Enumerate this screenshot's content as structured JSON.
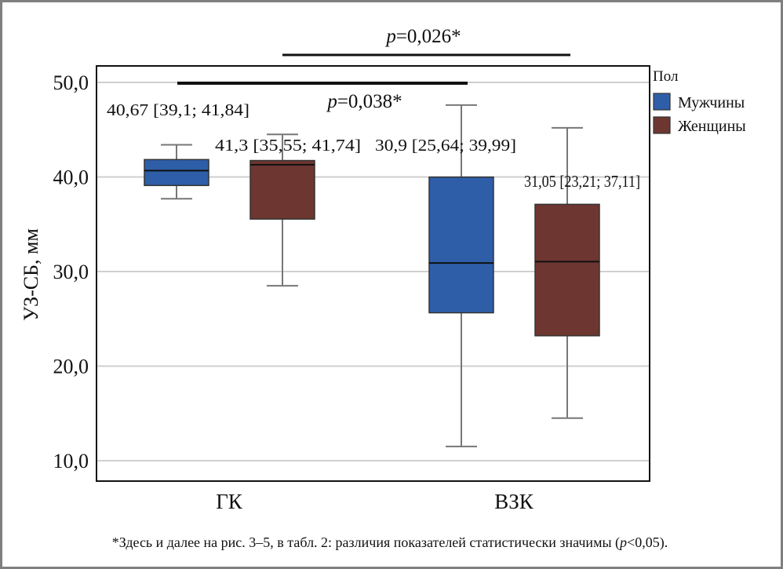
{
  "chart_data": {
    "type": "box",
    "ylabel": "УЗ-СБ, мм",
    "xlabel": "",
    "ylim": [
      5,
      53
    ],
    "yticks": [
      10,
      20,
      30,
      40,
      50
    ],
    "ytick_labels": [
      "10,0",
      "20,0",
      "30,0",
      "40,0",
      "50,0"
    ],
    "grid": true,
    "categories": [
      "ГК",
      "ВЗК"
    ],
    "legend": {
      "title": "Пол",
      "placement": "right",
      "entries": [
        {
          "label": "Мужчины",
          "color": "#2e5ea8"
        },
        {
          "label": "Женщины",
          "color": "#6e3630"
        }
      ]
    },
    "series": [
      {
        "name": "Мужчины",
        "color": "#2e5ea8",
        "boxes": [
          {
            "category": "ГК",
            "min": 37.7,
            "q1": 39.1,
            "median": 40.67,
            "q3": 41.84,
            "max": 43.4,
            "label": "40,67 [39,1; 41,84]"
          },
          {
            "category": "ВЗК",
            "min": 11.5,
            "q1": 25.64,
            "median": 30.9,
            "q3": 39.99,
            "max": 47.6,
            "label": "30,9 [25,64; 39,99]"
          }
        ]
      },
      {
        "name": "Женщины",
        "color": "#6e3630",
        "boxes": [
          {
            "category": "ГК",
            "min": 28.5,
            "q1": 35.55,
            "median": 41.3,
            "q3": 41.74,
            "max": 44.5,
            "label": "41,3 [35,55; 41,74]"
          },
          {
            "category": "ВЗК",
            "min": 14.5,
            "q1": 23.21,
            "median": 31.05,
            "q3": 37.11,
            "max": 45.2,
            "label": "31,05 [23,21; 37,11]"
          }
        ]
      }
    ],
    "annotations": [
      {
        "p_label": "p",
        "text": "=0,026*",
        "from": "ГК Женщины",
        "to": "ВЗК Женщины"
      },
      {
        "p_label": "p",
        "text": "=0,038*",
        "from": "ГК Мужчины",
        "to": "ВЗК Мужчины"
      }
    ]
  },
  "footnote": {
    "prefix": "*Здесь и далее на рис. 3–5, в табл. 2: различия показателей статистически значимы (",
    "p": "p",
    "suffix": "<0,05)."
  }
}
